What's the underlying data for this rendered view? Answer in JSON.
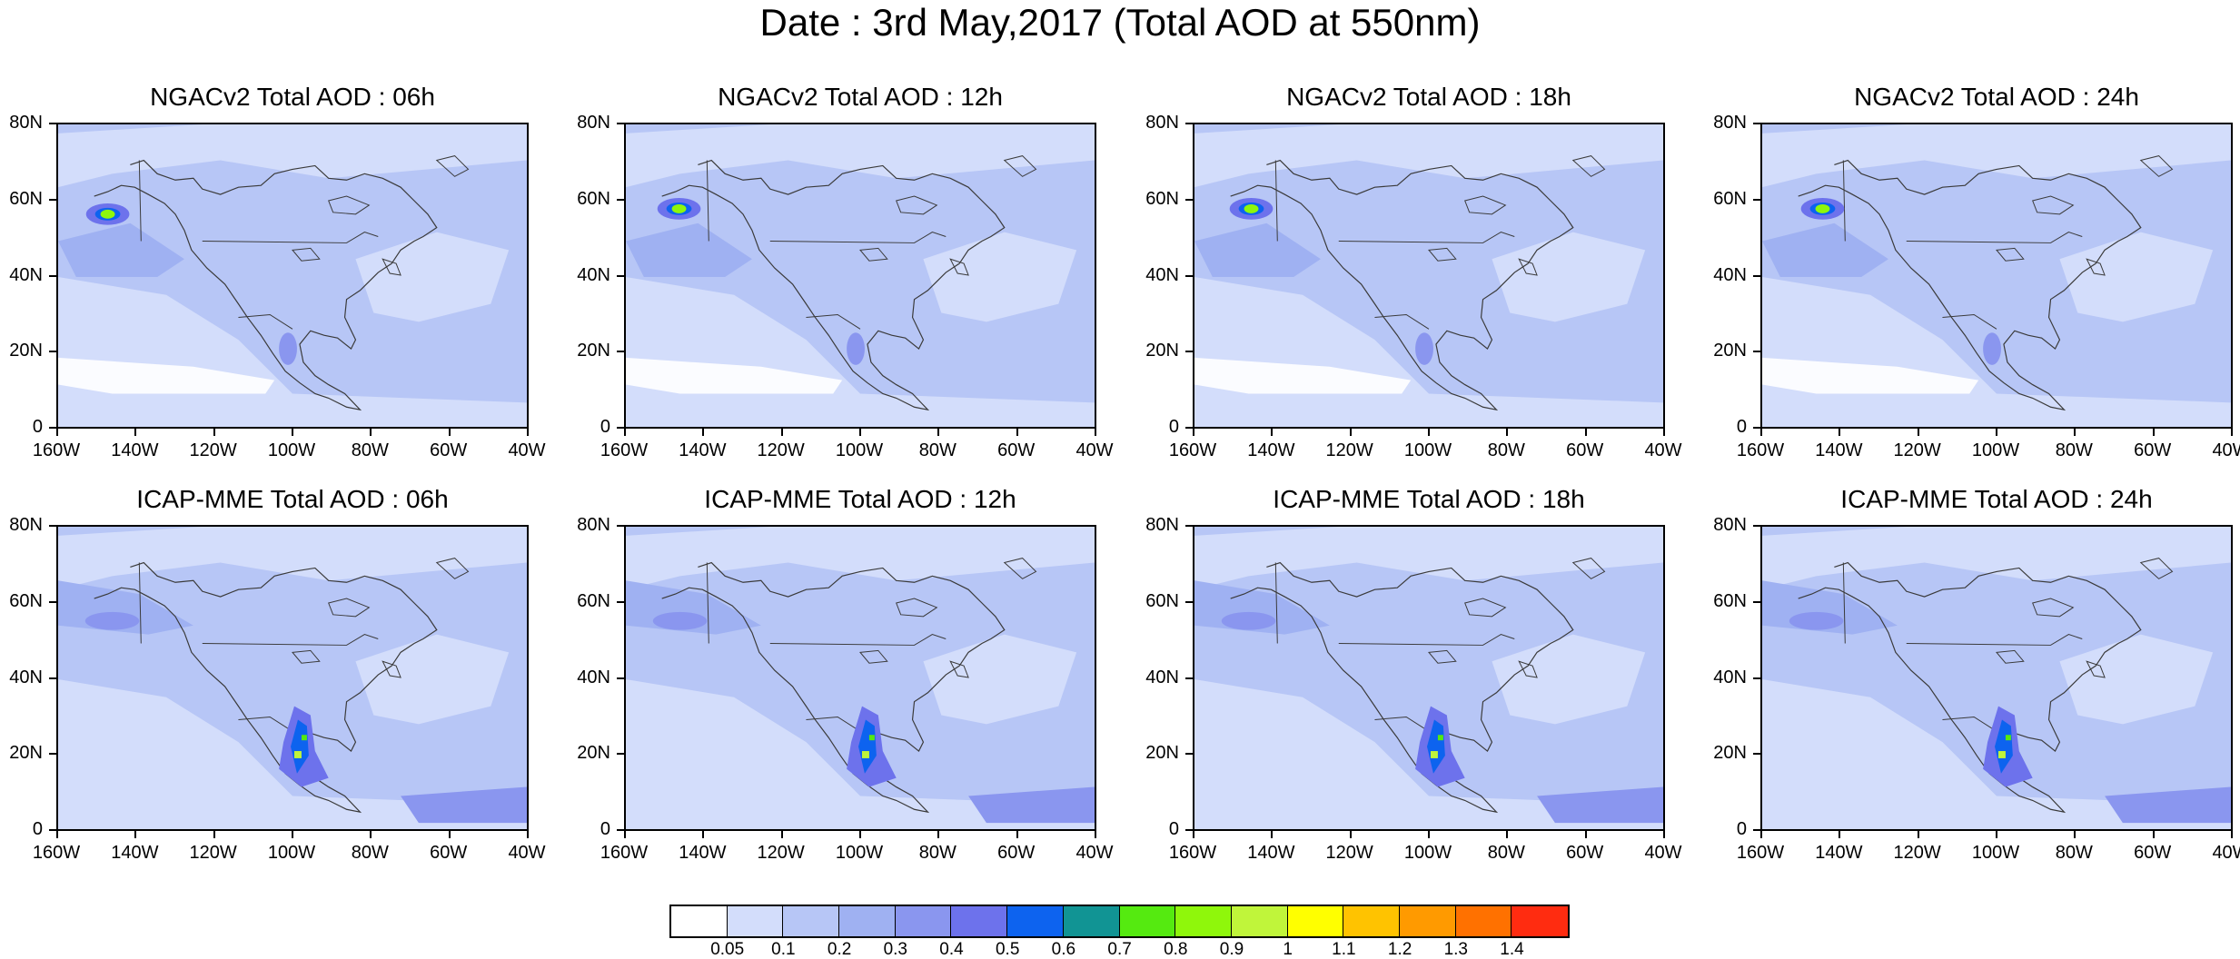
{
  "title": "Date : 3rd May,2017 (Total AOD at 550nm)",
  "lat_labels": [
    "80N",
    "60N",
    "40N",
    "20N",
    "0"
  ],
  "lon_labels": [
    "160W",
    "140W",
    "120W",
    "100W",
    "80W",
    "60W",
    "40W"
  ],
  "panels": [
    {
      "title": "NGACv2 Total AOD : 06h",
      "row": 0,
      "col": 0
    },
    {
      "title": "NGACv2 Total AOD : 12h",
      "row": 0,
      "col": 1
    },
    {
      "title": "NGACv2 Total AOD : 18h",
      "row": 0,
      "col": 2
    },
    {
      "title": "NGACv2 Total AOD : 24h",
      "row": 0,
      "col": 3
    },
    {
      "title": "ICAP-MME Total AOD : 06h",
      "row": 1,
      "col": 0
    },
    {
      "title": "ICAP-MME Total AOD : 12h",
      "row": 1,
      "col": 1
    },
    {
      "title": "ICAP-MME Total AOD : 18h",
      "row": 1,
      "col": 2
    },
    {
      "title": "ICAP-MME Total AOD : 24h",
      "row": 1,
      "col": 3
    }
  ],
  "colorbar": {
    "colors": [
      "#ffffff",
      "#d3ddfb",
      "#b7c6f6",
      "#9fb1f2",
      "#8a96ef",
      "#6d72ec",
      "#0d63ef",
      "#119494",
      "#55ea10",
      "#8ff70b",
      "#c0f53a",
      "#ffff00",
      "#ffc300",
      "#ff9a00",
      "#ff7100",
      "#ff2c10"
    ],
    "labels": [
      "0.05",
      "0.1",
      "0.2",
      "0.3",
      "0.4",
      "0.5",
      "0.6",
      "0.7",
      "0.8",
      "0.9",
      "1",
      "1.1",
      "1.2",
      "1.3",
      "1.4"
    ]
  },
  "map_colors": {
    "background": "#b7c6f6",
    "light": "#d3ddfb",
    "medium": "#9fb1f2",
    "dark": "#8a96ef",
    "darker": "#6d72ec",
    "ocean_white": "#ffffff",
    "coast": "#3a3a3a"
  }
}
